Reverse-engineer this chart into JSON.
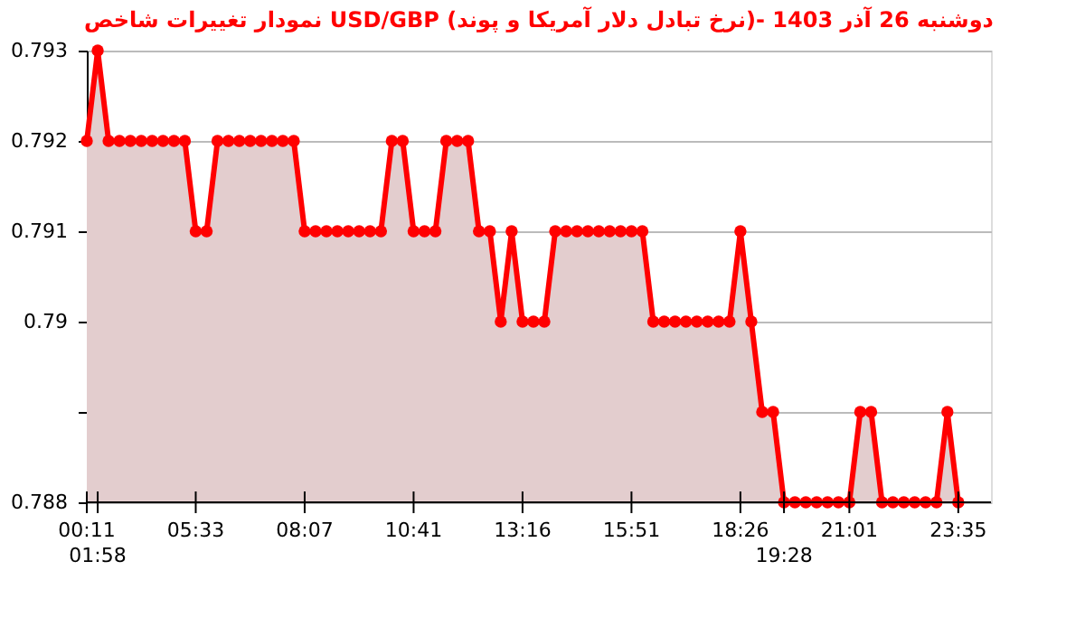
{
  "chart_data": {
    "type": "area",
    "title": "نمودار تغییرات شاخص USD/GBP (نرخ تبادل دلار آمریکا و پوند)- دوشنبه  26 آذر 1403",
    "categories": [
      "00:11",
      "01:58",
      null,
      null,
      null,
      null,
      null,
      null,
      null,
      null,
      "05:33",
      null,
      null,
      null,
      null,
      null,
      null,
      null,
      null,
      null,
      "08:07",
      null,
      null,
      null,
      null,
      null,
      null,
      null,
      null,
      null,
      "10:41",
      null,
      null,
      null,
      null,
      null,
      null,
      null,
      null,
      null,
      "13:16",
      null,
      null,
      null,
      null,
      null,
      null,
      null,
      null,
      null,
      "15:51",
      null,
      null,
      null,
      null,
      null,
      null,
      null,
      null,
      null,
      "18:26",
      null,
      null,
      null,
      "19:28",
      null,
      null,
      null,
      null,
      null,
      "21:01",
      null,
      null,
      null,
      null,
      null,
      null,
      null,
      null,
      null,
      "23:35"
    ],
    "series": [
      {
        "color": "#ff0000",
        "values": [
          0.792,
          0.793,
          0.792,
          0.792,
          0.792,
          0.792,
          0.792,
          0.792,
          0.792,
          0.792,
          0.791,
          0.791,
          0.792,
          0.792,
          0.792,
          0.792,
          0.792,
          0.792,
          0.792,
          0.792,
          0.791,
          0.791,
          0.791,
          0.791,
          0.791,
          0.791,
          0.791,
          0.791,
          0.792,
          0.792,
          0.791,
          0.791,
          0.791,
          0.792,
          0.792,
          0.792,
          0.791,
          0.791,
          0.79,
          0.791,
          0.79,
          0.79,
          0.79,
          0.791,
          0.791,
          0.791,
          0.791,
          0.791,
          0.791,
          0.791,
          0.791,
          0.791,
          0.79,
          0.79,
          0.79,
          0.79,
          0.79,
          0.79,
          0.79,
          0.79,
          0.791,
          0.79,
          0.789,
          0.789,
          0.788,
          0.788,
          0.788,
          0.788,
          0.788,
          0.788,
          0.788,
          0.789,
          0.789,
          0.788,
          0.788,
          0.788,
          0.788,
          0.788,
          0.788,
          0.789,
          0.788
        ]
      }
    ],
    "ylim": [
      0.788,
      0.793
    ],
    "yticks": [
      0.788,
      {
        "value": 0.789,
        "label": null
      },
      0.79,
      0.791,
      0.792,
      0.793
    ],
    "grid": "y",
    "marker": "circle",
    "line_style": "solid"
  }
}
